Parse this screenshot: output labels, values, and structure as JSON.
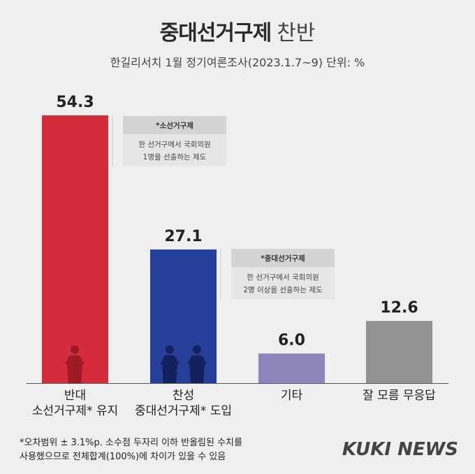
{
  "header": {
    "title_bold": "중대선거구제",
    "title_light": "찬반",
    "subtitle": "한길리서치 1월 정기여론조사(2023.1.7~9) 단위: %"
  },
  "chart_data": {
    "type": "bar",
    "categories": [
      [
        "반대",
        "소선거구제* 유지"
      ],
      [
        "찬성",
        "중대선거구제* 도입"
      ],
      [
        "기타"
      ],
      [
        "잘 모름 무응답"
      ]
    ],
    "values": [
      54.3,
      27.1,
      6.0,
      12.6
    ],
    "value_labels": [
      "54.3",
      "27.1",
      "6.0",
      "12.6"
    ],
    "colors": [
      "#d42c3a",
      "#263f9a",
      "#9084bd",
      "#929292"
    ],
    "ylim": [
      0,
      60
    ],
    "grid": false,
    "legend": "none"
  },
  "notes": [
    {
      "head": "*소선거구제",
      "lines": [
        "한 선거구에서 국회의원",
        "1명을 선출하는 제도"
      ]
    },
    {
      "head": "*중대선거구제",
      "lines": [
        "한 선거구에서 국회의원",
        "2명 이상을 선출하는 제도"
      ]
    }
  ],
  "footnote": {
    "line1": "*오차범위 ± 3.1%p. 소수점 두자리 이하 반올림된 수치를",
    "line2": "사용했으므로 전체합계(100%)에 차이가 있을 수 있음"
  },
  "logo": "KUKI NEWS",
  "icons": [
    "podium-speaker-icon"
  ]
}
